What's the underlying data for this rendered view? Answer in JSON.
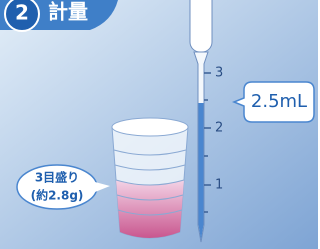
{
  "header": {
    "step": "2",
    "title": "計量"
  },
  "pipette": {
    "scale_labels": [
      "3",
      "2",
      "1"
    ],
    "callout": "2.5mL"
  },
  "cup": {
    "label": [
      "3目盛り",
      "(約2.8g)"
    ]
  }
}
